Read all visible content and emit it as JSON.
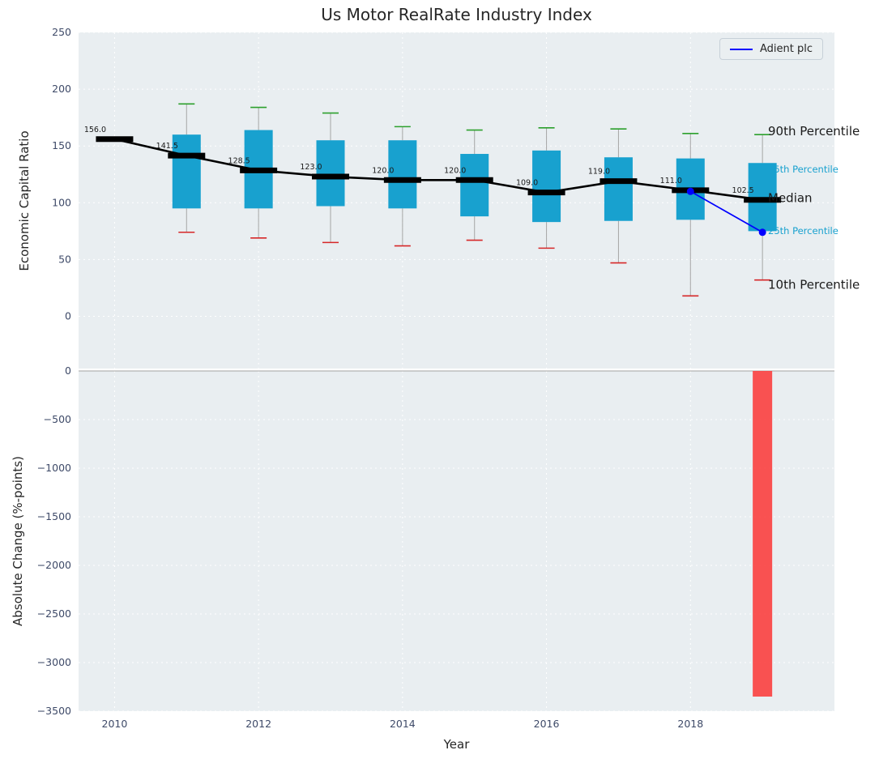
{
  "title": "Us Motor RealRate Industry Index",
  "legend": {
    "label": "Adient plc"
  },
  "colors": {
    "box": "#18a1cf",
    "median": "#000000",
    "company_line": "#0000ff",
    "cap_top": "#2ca02c",
    "cap_bottom": "#d62728",
    "whisker": "#a5a5a5",
    "bar": "#fa4343",
    "plot_bg": "#e9eef1",
    "grid": "#ffffff",
    "tick_label": "#3e4a68",
    "annotation_major": "#1a1a1a"
  },
  "chart_data": [
    {
      "type": "boxplot",
      "title": "Us Motor RealRate Industry Index",
      "xlabel": "Year",
      "ylabel": "Economic Capital Ratio",
      "ylim": [
        -46,
        250
      ],
      "yticks": [
        250,
        200,
        150,
        100,
        50,
        0
      ],
      "xticks": [
        2010,
        2012,
        2014,
        2016,
        2018
      ],
      "grid": true,
      "legend_position": "upper right",
      "years": [
        2010,
        2011,
        2012,
        2013,
        2014,
        2015,
        2016,
        2017,
        2018,
        2019
      ],
      "median": [
        156.0,
        141.5,
        128.5,
        123.0,
        120.0,
        120.0,
        109.0,
        119.0,
        111.0,
        102.5
      ],
      "median_labels": [
        "156.0",
        "141.5",
        "128.5",
        "123.0",
        "120.0",
        "120.0",
        "109.0",
        "119.0",
        "111.0",
        "102.5"
      ],
      "p25": [
        null,
        95,
        95,
        97,
        95,
        88,
        83,
        84,
        85,
        75
      ],
      "p75": [
        null,
        160,
        164,
        155,
        155,
        143,
        146,
        140,
        139,
        135
      ],
      "p90": [
        null,
        187,
        184,
        179,
        167,
        164,
        166,
        165,
        161,
        160
      ],
      "p10": [
        null,
        74,
        69,
        65,
        62,
        67,
        60,
        47,
        18,
        32
      ],
      "series": [
        {
          "name": "Adient plc",
          "x": [
            2018,
            2019
          ],
          "y": [
            110,
            74
          ]
        }
      ],
      "annotations": [
        {
          "label": "90th Percentile",
          "value": 163,
          "emphasis": "major"
        },
        {
          "label": "75th Percentile",
          "value": 130,
          "emphasis": "minor"
        },
        {
          "label": "Median",
          "value": 104,
          "emphasis": "major"
        },
        {
          "label": "25th Percentile",
          "value": 76,
          "emphasis": "minor"
        },
        {
          "label": "10th Percentile",
          "value": 28,
          "emphasis": "major"
        }
      ]
    },
    {
      "type": "bar",
      "xlabel": "Year",
      "ylabel": "Absolute Change (%-points)",
      "ylim": [
        -3500,
        0
      ],
      "yticks": [
        0,
        -500,
        -1000,
        -1500,
        -2000,
        -2500,
        -3000,
        -3500
      ],
      "categories": [
        2019
      ],
      "values": [
        -3350
      ]
    }
  ]
}
